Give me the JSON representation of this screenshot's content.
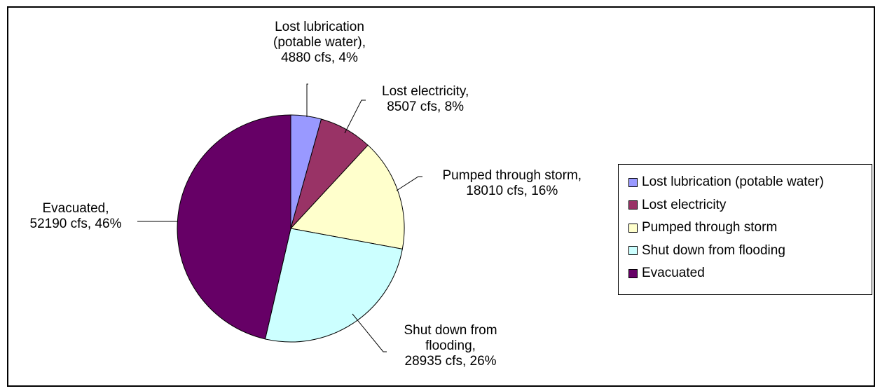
{
  "chart_data": {
    "type": "pie",
    "unit": "cfs",
    "slices": [
      {
        "name": "Lost lubrication (potable water)",
        "value": 4880,
        "percent": 4,
        "color": "#9999FF",
        "label_lines": [
          "Lost lubrication",
          "(potable water),",
          "4880 cfs, 4%"
        ]
      },
      {
        "name": "Lost electricity",
        "value": 8507,
        "percent": 8,
        "color": "#993366",
        "label_lines": [
          "Lost electricity,",
          "8507 cfs, 8%"
        ]
      },
      {
        "name": "Pumped through storm",
        "value": 18010,
        "percent": 16,
        "color": "#FFFFCC",
        "label_lines": [
          "Pumped through storm,",
          "18010 cfs, 16%"
        ]
      },
      {
        "name": "Shut down from flooding",
        "value": 28935,
        "percent": 26,
        "color": "#CCFFFF",
        "label_lines": [
          "Shut down from",
          "flooding,",
          "28935 cfs, 26%"
        ]
      },
      {
        "name": "Evacuated",
        "value": 52190,
        "percent": 46,
        "color": "#660066",
        "label_lines": [
          "Evacuated,",
          "52190 cfs, 46%"
        ]
      }
    ],
    "start_angle": "top",
    "direction": "clockwise",
    "legend_position": "right"
  }
}
